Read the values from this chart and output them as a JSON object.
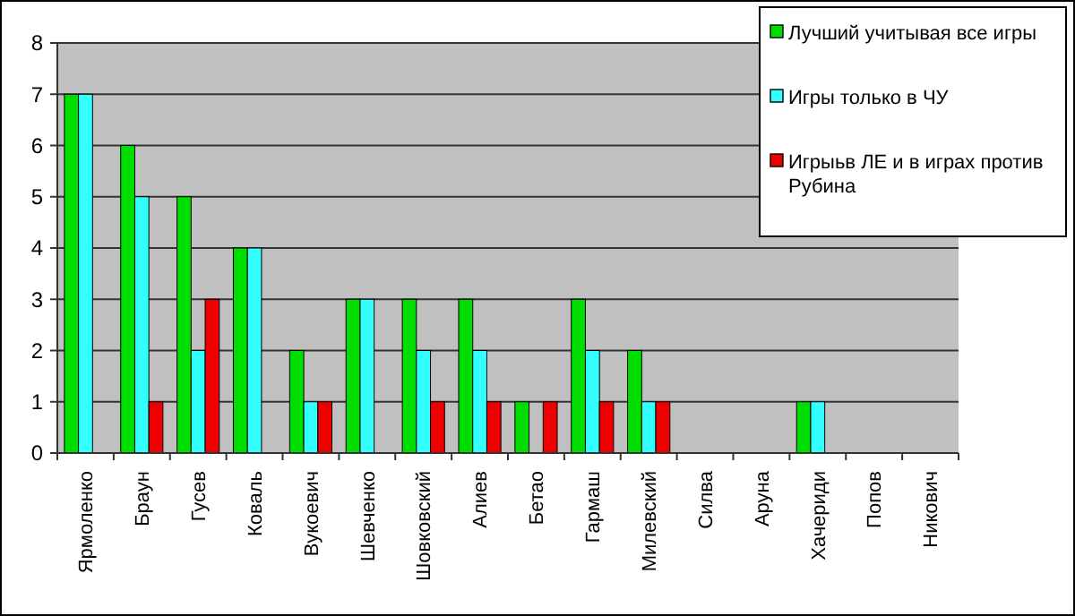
{
  "chart_data": {
    "type": "bar",
    "categories": [
      "Ярмоленко",
      "Браун",
      "Гусев",
      "Коваль",
      "Вукоевич",
      "Шевченко",
      "Шовковский",
      "Алиев",
      "Бетао",
      "Гармаш",
      "Милевский",
      "Силва",
      "Аруна",
      "Хачериди",
      "Попов",
      "Никович"
    ],
    "series": [
      {
        "name": "Лучший учитывая все игры",
        "color": "#00dd00",
        "values": [
          7,
          6,
          5,
          4,
          2,
          3,
          3,
          3,
          1,
          3,
          2,
          0,
          0,
          1,
          0,
          0
        ]
      },
      {
        "name": "Игры только в ЧУ",
        "color": "#33ffff",
        "values": [
          7,
          5,
          2,
          4,
          1,
          3,
          2,
          2,
          0,
          2,
          1,
          0,
          0,
          1,
          0,
          0
        ]
      },
      {
        "name": "Игрыьв ЛЕ и в играх против Рубина",
        "color": "#ee0000",
        "values": [
          0,
          1,
          3,
          0,
          1,
          0,
          1,
          1,
          1,
          1,
          1,
          0,
          0,
          0,
          0,
          0
        ]
      }
    ],
    "ylim": [
      0,
      8
    ],
    "yticks": [
      0,
      1,
      2,
      3,
      4,
      5,
      6,
      7,
      8
    ],
    "grid": "y",
    "legend": "top right"
  }
}
